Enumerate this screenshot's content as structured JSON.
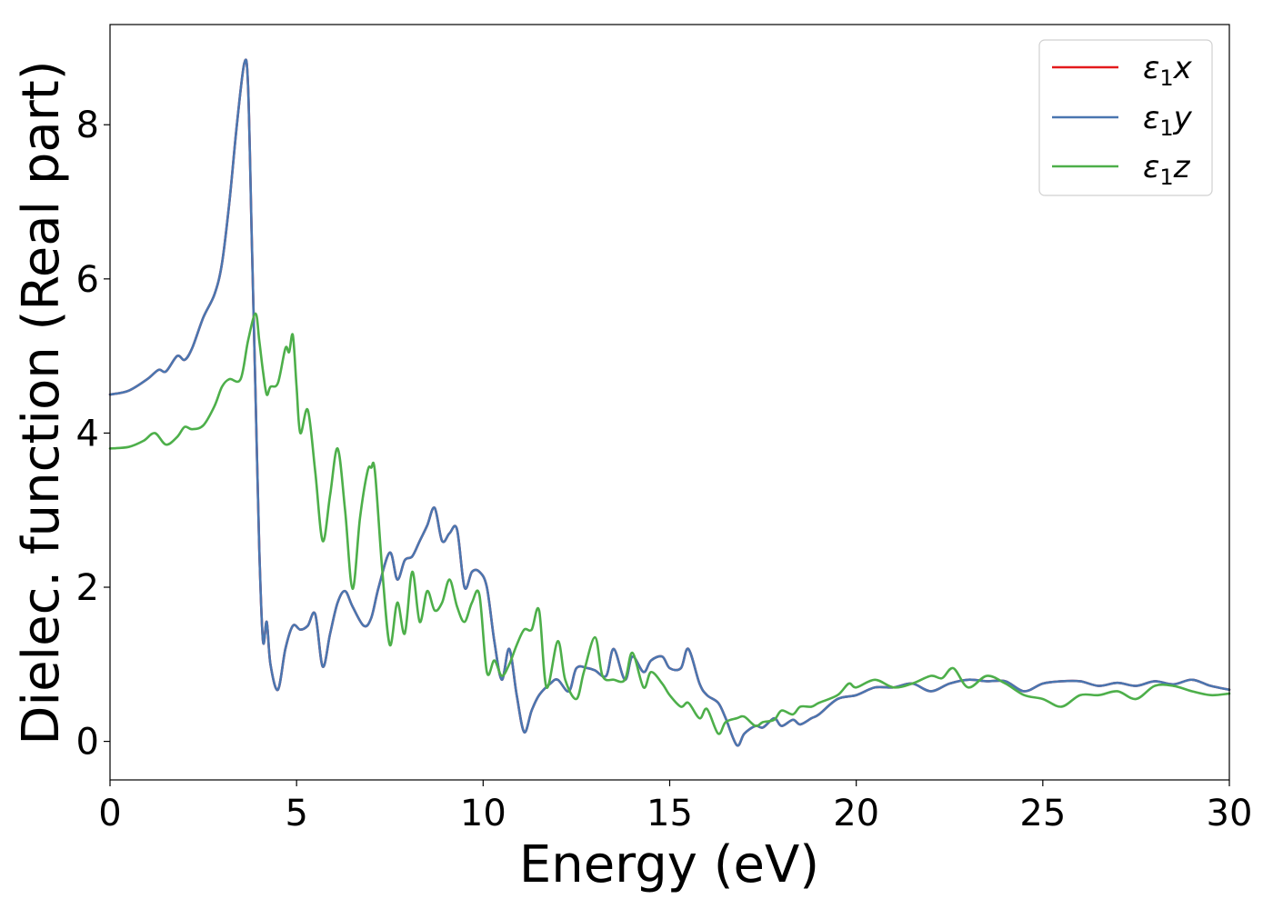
{
  "chart_data": {
    "type": "line",
    "xlabel": "Energy (eV)",
    "ylabel": "Dielec. function (Real part)",
    "xlim": [
      0,
      30
    ],
    "ylim": [
      -0.5,
      9.3
    ],
    "xticks": [
      0,
      5,
      10,
      15,
      20,
      25,
      30
    ],
    "yticks": [
      0,
      2,
      4,
      6,
      8
    ],
    "grid": false,
    "legend": {
      "position": "top-right",
      "entries": [
        {
          "symbol": "ε",
          "subscript": "1",
          "variable": "x"
        },
        {
          "symbol": "ε",
          "subscript": "1",
          "variable": "y"
        },
        {
          "symbol": "ε",
          "subscript": "1",
          "variable": "z"
        }
      ]
    },
    "series": [
      {
        "name": "ε1x",
        "color": "#e41a1c",
        "x": [
          0,
          0.5,
          1,
          1.3,
          1.5,
          1.8,
          2,
          2.2,
          2.5,
          2.8,
          3,
          3.2,
          3.4,
          3.6,
          3.7,
          3.8,
          3.9,
          4.0,
          4.1,
          4.2,
          4.3,
          4.5,
          4.7,
          4.9,
          5.1,
          5.3,
          5.5,
          5.7,
          5.9,
          6.1,
          6.3,
          6.5,
          6.8,
          7.0,
          7.2,
          7.5,
          7.7,
          7.9,
          8.1,
          8.3,
          8.5,
          8.7,
          8.9,
          9.1,
          9.3,
          9.5,
          9.7,
          9.9,
          10.1,
          10.3,
          10.5,
          10.7,
          10.9,
          11.1,
          11.3,
          11.5,
          11.8,
          12.0,
          12.3,
          12.5,
          12.8,
          13.0,
          13.3,
          13.5,
          13.8,
          14.0,
          14.3,
          14.5,
          14.8,
          15.0,
          15.3,
          15.5,
          15.8,
          16.0,
          16.3,
          16.5,
          16.8,
          17.0,
          17.3,
          17.5,
          17.8,
          18.0,
          18.3,
          18.5,
          18.8,
          19.0,
          19.5,
          20.0,
          20.5,
          21.0,
          21.5,
          22.0,
          22.5,
          23.0,
          23.5,
          24.0,
          24.5,
          25.0,
          25.5,
          26.0,
          26.5,
          27.0,
          27.5,
          28.0,
          28.5,
          29.0,
          29.5,
          30.0
        ],
        "values": [
          4.5,
          4.55,
          4.7,
          4.82,
          4.8,
          5.0,
          4.95,
          5.1,
          5.5,
          5.8,
          6.2,
          7.0,
          8.0,
          8.8,
          8.5,
          6.5,
          4.5,
          2.5,
          1.3,
          1.55,
          1.0,
          0.67,
          1.2,
          1.5,
          1.45,
          1.5,
          1.65,
          0.97,
          1.4,
          1.8,
          1.95,
          1.75,
          1.5,
          1.6,
          2.0,
          2.45,
          2.1,
          2.35,
          2.4,
          2.6,
          2.8,
          3.03,
          2.6,
          2.7,
          2.75,
          2.0,
          2.2,
          2.2,
          2.0,
          1.3,
          0.8,
          1.2,
          0.6,
          0.12,
          0.4,
          0.6,
          0.75,
          0.8,
          0.65,
          0.95,
          0.95,
          0.92,
          0.85,
          1.2,
          0.8,
          1.1,
          0.9,
          1.05,
          1.1,
          0.95,
          0.95,
          1.2,
          0.75,
          0.6,
          0.5,
          0.3,
          -0.05,
          0.1,
          0.2,
          0.18,
          0.3,
          0.2,
          0.28,
          0.22,
          0.3,
          0.35,
          0.55,
          0.6,
          0.7,
          0.7,
          0.75,
          0.65,
          0.75,
          0.8,
          0.78,
          0.78,
          0.65,
          0.75,
          0.78,
          0.78,
          0.72,
          0.76,
          0.72,
          0.78,
          0.74,
          0.8,
          0.72,
          0.67
        ]
      },
      {
        "name": "ε1y",
        "color": "#4a76b0",
        "x": [
          0,
          0.5,
          1,
          1.3,
          1.5,
          1.8,
          2,
          2.2,
          2.5,
          2.8,
          3,
          3.2,
          3.4,
          3.6,
          3.7,
          3.8,
          3.9,
          4.0,
          4.1,
          4.2,
          4.3,
          4.5,
          4.7,
          4.9,
          5.1,
          5.3,
          5.5,
          5.7,
          5.9,
          6.1,
          6.3,
          6.5,
          6.8,
          7.0,
          7.2,
          7.5,
          7.7,
          7.9,
          8.1,
          8.3,
          8.5,
          8.7,
          8.9,
          9.1,
          9.3,
          9.5,
          9.7,
          9.9,
          10.1,
          10.3,
          10.5,
          10.7,
          10.9,
          11.1,
          11.3,
          11.5,
          11.8,
          12.0,
          12.3,
          12.5,
          12.8,
          13.0,
          13.3,
          13.5,
          13.8,
          14.0,
          14.3,
          14.5,
          14.8,
          15.0,
          15.3,
          15.5,
          15.8,
          16.0,
          16.3,
          16.5,
          16.8,
          17.0,
          17.3,
          17.5,
          17.8,
          18.0,
          18.3,
          18.5,
          18.8,
          19.0,
          19.5,
          20.0,
          20.5,
          21.0,
          21.5,
          22.0,
          22.5,
          23.0,
          23.5,
          24.0,
          24.5,
          25.0,
          25.5,
          26.0,
          26.5,
          27.0,
          27.5,
          28.0,
          28.5,
          29.0,
          29.5,
          30.0
        ],
        "values": [
          4.5,
          4.55,
          4.7,
          4.82,
          4.8,
          5.0,
          4.95,
          5.1,
          5.5,
          5.8,
          6.2,
          7.0,
          8.0,
          8.8,
          8.5,
          6.5,
          4.5,
          2.5,
          1.3,
          1.55,
          1.0,
          0.67,
          1.2,
          1.5,
          1.45,
          1.5,
          1.65,
          0.97,
          1.4,
          1.8,
          1.95,
          1.75,
          1.5,
          1.6,
          2.0,
          2.45,
          2.1,
          2.35,
          2.4,
          2.6,
          2.8,
          3.03,
          2.6,
          2.7,
          2.75,
          2.0,
          2.2,
          2.2,
          2.0,
          1.3,
          0.8,
          1.2,
          0.6,
          0.12,
          0.4,
          0.6,
          0.75,
          0.8,
          0.65,
          0.95,
          0.95,
          0.92,
          0.85,
          1.2,
          0.8,
          1.1,
          0.9,
          1.05,
          1.1,
          0.95,
          0.95,
          1.2,
          0.75,
          0.6,
          0.5,
          0.3,
          -0.05,
          0.1,
          0.2,
          0.18,
          0.3,
          0.2,
          0.28,
          0.22,
          0.3,
          0.35,
          0.55,
          0.6,
          0.7,
          0.7,
          0.75,
          0.65,
          0.75,
          0.8,
          0.78,
          0.78,
          0.65,
          0.75,
          0.78,
          0.78,
          0.72,
          0.76,
          0.72,
          0.78,
          0.74,
          0.8,
          0.72,
          0.67
        ]
      },
      {
        "name": "ε1z",
        "color": "#4daf4a",
        "x": [
          0,
          0.5,
          0.9,
          1.2,
          1.5,
          1.8,
          2.0,
          2.2,
          2.5,
          2.8,
          3.0,
          3.2,
          3.5,
          3.7,
          3.9,
          4.0,
          4.1,
          4.2,
          4.3,
          4.5,
          4.7,
          4.8,
          4.9,
          5.0,
          5.1,
          5.3,
          5.5,
          5.7,
          5.9,
          6.1,
          6.3,
          6.5,
          6.7,
          6.9,
          7.0,
          7.1,
          7.3,
          7.5,
          7.7,
          7.9,
          8.1,
          8.3,
          8.5,
          8.7,
          8.9,
          9.1,
          9.3,
          9.5,
          9.7,
          9.9,
          10.1,
          10.3,
          10.5,
          10.7,
          10.9,
          11.1,
          11.3,
          11.5,
          11.7,
          12.0,
          12.2,
          12.5,
          12.7,
          13.0,
          13.2,
          13.5,
          13.8,
          14.0,
          14.3,
          14.5,
          14.8,
          15.0,
          15.3,
          15.5,
          15.8,
          16.0,
          16.3,
          16.5,
          16.8,
          17.0,
          17.3,
          17.5,
          17.8,
          18.0,
          18.3,
          18.5,
          18.8,
          19.0,
          19.5,
          19.8,
          20.0,
          20.5,
          21.0,
          21.5,
          22.0,
          22.3,
          22.6,
          23.0,
          23.5,
          24.0,
          24.5,
          25.0,
          25.5,
          26.0,
          26.5,
          27.0,
          27.5,
          28.0,
          28.5,
          29.0,
          29.5,
          30.0
        ],
        "values": [
          3.8,
          3.82,
          3.9,
          4.0,
          3.85,
          3.95,
          4.08,
          4.05,
          4.1,
          4.35,
          4.6,
          4.7,
          4.7,
          5.2,
          5.55,
          5.2,
          4.8,
          4.5,
          4.6,
          4.65,
          5.1,
          5.05,
          5.27,
          4.6,
          4.0,
          4.3,
          3.5,
          2.6,
          3.2,
          3.8,
          3.0,
          1.98,
          2.9,
          3.5,
          3.55,
          3.5,
          2.2,
          1.25,
          1.8,
          1.4,
          2.2,
          1.55,
          1.95,
          1.7,
          1.8,
          2.1,
          1.75,
          1.55,
          1.8,
          1.9,
          0.9,
          1.05,
          0.85,
          1.0,
          1.25,
          1.45,
          1.45,
          1.7,
          0.7,
          1.3,
          0.8,
          0.55,
          0.9,
          1.35,
          0.85,
          0.8,
          0.8,
          1.15,
          0.7,
          0.9,
          0.75,
          0.6,
          0.45,
          0.5,
          0.3,
          0.42,
          0.1,
          0.25,
          0.3,
          0.32,
          0.2,
          0.25,
          0.28,
          0.4,
          0.35,
          0.45,
          0.45,
          0.5,
          0.6,
          0.75,
          0.7,
          0.8,
          0.7,
          0.75,
          0.85,
          0.82,
          0.95,
          0.7,
          0.85,
          0.75,
          0.6,
          0.55,
          0.45,
          0.6,
          0.6,
          0.65,
          0.55,
          0.72,
          0.72,
          0.65,
          0.6,
          0.62
        ]
      }
    ]
  }
}
